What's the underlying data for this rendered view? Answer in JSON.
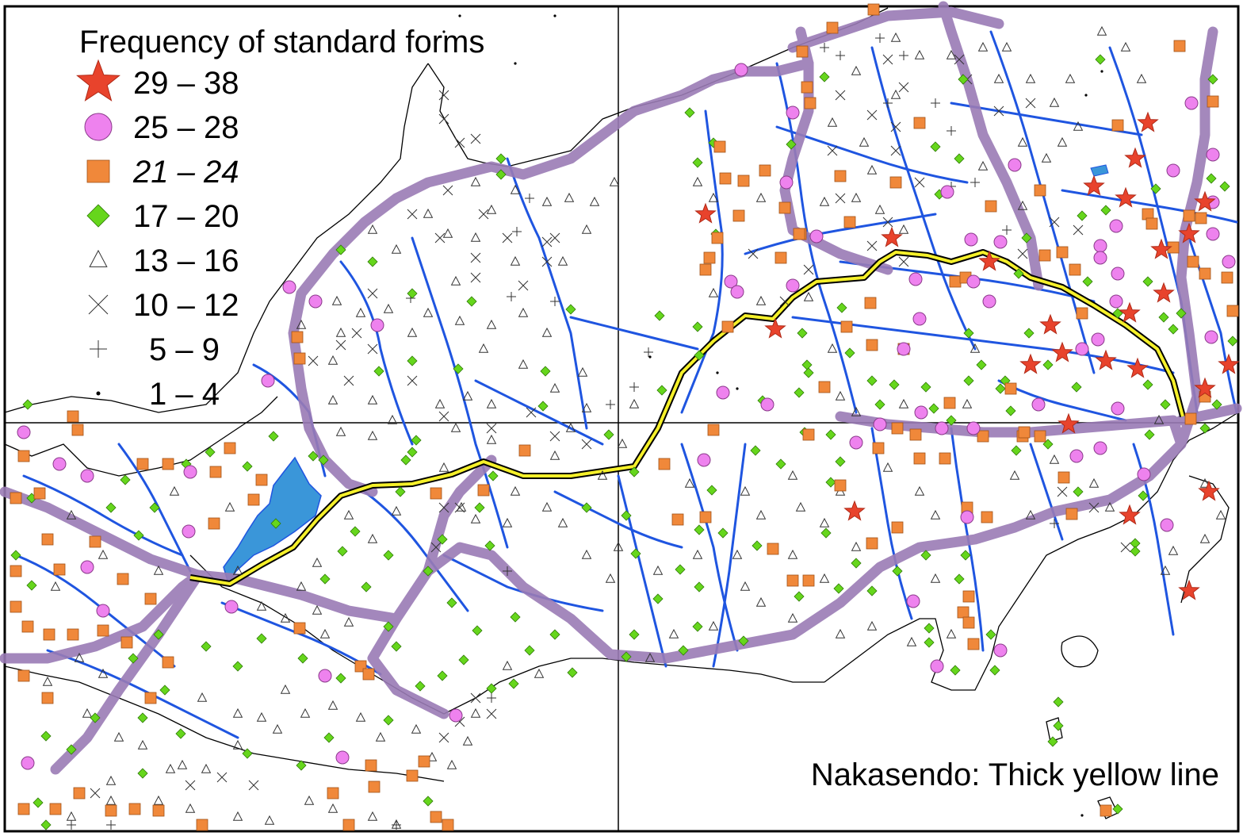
{
  "legend": {
    "title": "Frequency of standard forms",
    "items": [
      {
        "label": "29 – 38",
        "symbol": "star",
        "italic": false
      },
      {
        "label": "25 – 28",
        "symbol": "circle",
        "italic": false
      },
      {
        "label": "21 – 24",
        "symbol": "square",
        "italic": true
      },
      {
        "label": "17 – 20",
        "symbol": "diamond",
        "italic": false
      },
      {
        "label": "13 – 16",
        "symbol": "triangle",
        "italic": false
      },
      {
        "label": "10 – 12",
        "symbol": "cross",
        "italic": false
      },
      {
        "label": "5 – 9",
        "symbol": "plus",
        "italic": false
      },
      {
        "label": "1 – 4",
        "symbol": "dot",
        "italic": false
      }
    ]
  },
  "caption": "Nakasendo: Thick yellow line",
  "colors": {
    "star": "#e8432c",
    "circle": "#ee82ee",
    "square": "#f0883a",
    "diamond": "#66d61c",
    "river": "#1f55e0",
    "highway": "#9a7bb5",
    "nakasendo": "#f5f02a",
    "lake": "#3a96d9",
    "coast": "#000000"
  }
}
